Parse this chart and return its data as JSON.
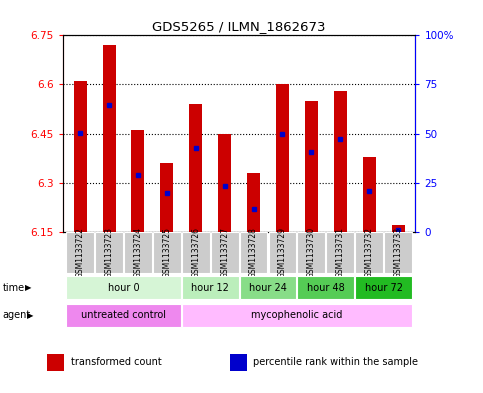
{
  "title": "GDS5265 / ILMN_1862673",
  "samples": [
    "GSM1133722",
    "GSM1133723",
    "GSM1133724",
    "GSM1133725",
    "GSM1133726",
    "GSM1133727",
    "GSM1133728",
    "GSM1133729",
    "GSM1133730",
    "GSM1133731",
    "GSM1133732",
    "GSM1133733"
  ],
  "bar_top": [
    6.61,
    6.72,
    6.46,
    6.36,
    6.54,
    6.45,
    6.33,
    6.6,
    6.55,
    6.58,
    6.38,
    6.17
  ],
  "bar_bottom": 6.15,
  "blue_dot_value": [
    6.453,
    6.537,
    6.325,
    6.27,
    6.405,
    6.29,
    6.22,
    6.45,
    6.395,
    6.435,
    6.275,
    6.155
  ],
  "ylim": [
    6.15,
    6.75
  ],
  "yticks_left": [
    6.15,
    6.3,
    6.45,
    6.6,
    6.75
  ],
  "yticks_right": [
    0,
    25,
    50,
    75,
    100
  ],
  "ytick_labels_right": [
    "0",
    "25",
    "50",
    "75",
    "100%"
  ],
  "time_groups": [
    {
      "label": "hour 0",
      "start": 0,
      "end": 4,
      "color": "#d6f5d6"
    },
    {
      "label": "hour 12",
      "start": 4,
      "end": 6,
      "color": "#bbeebb"
    },
    {
      "label": "hour 24",
      "start": 6,
      "end": 8,
      "color": "#88dd88"
    },
    {
      "label": "hour 48",
      "start": 8,
      "end": 10,
      "color": "#55cc55"
    },
    {
      "label": "hour 72",
      "start": 10,
      "end": 12,
      "color": "#22bb22"
    }
  ],
  "agent_groups": [
    {
      "label": "untreated control",
      "start": 0,
      "end": 4,
      "color": "#ee88ee"
    },
    {
      "label": "mycophenolic acid",
      "start": 4,
      "end": 12,
      "color": "#ffbbff"
    }
  ],
  "bar_color": "#cc0000",
  "dot_color": "#0000cc",
  "legend_items": [
    {
      "color": "#cc0000",
      "label": "transformed count"
    },
    {
      "color": "#0000cc",
      "label": "percentile rank within the sample"
    }
  ]
}
